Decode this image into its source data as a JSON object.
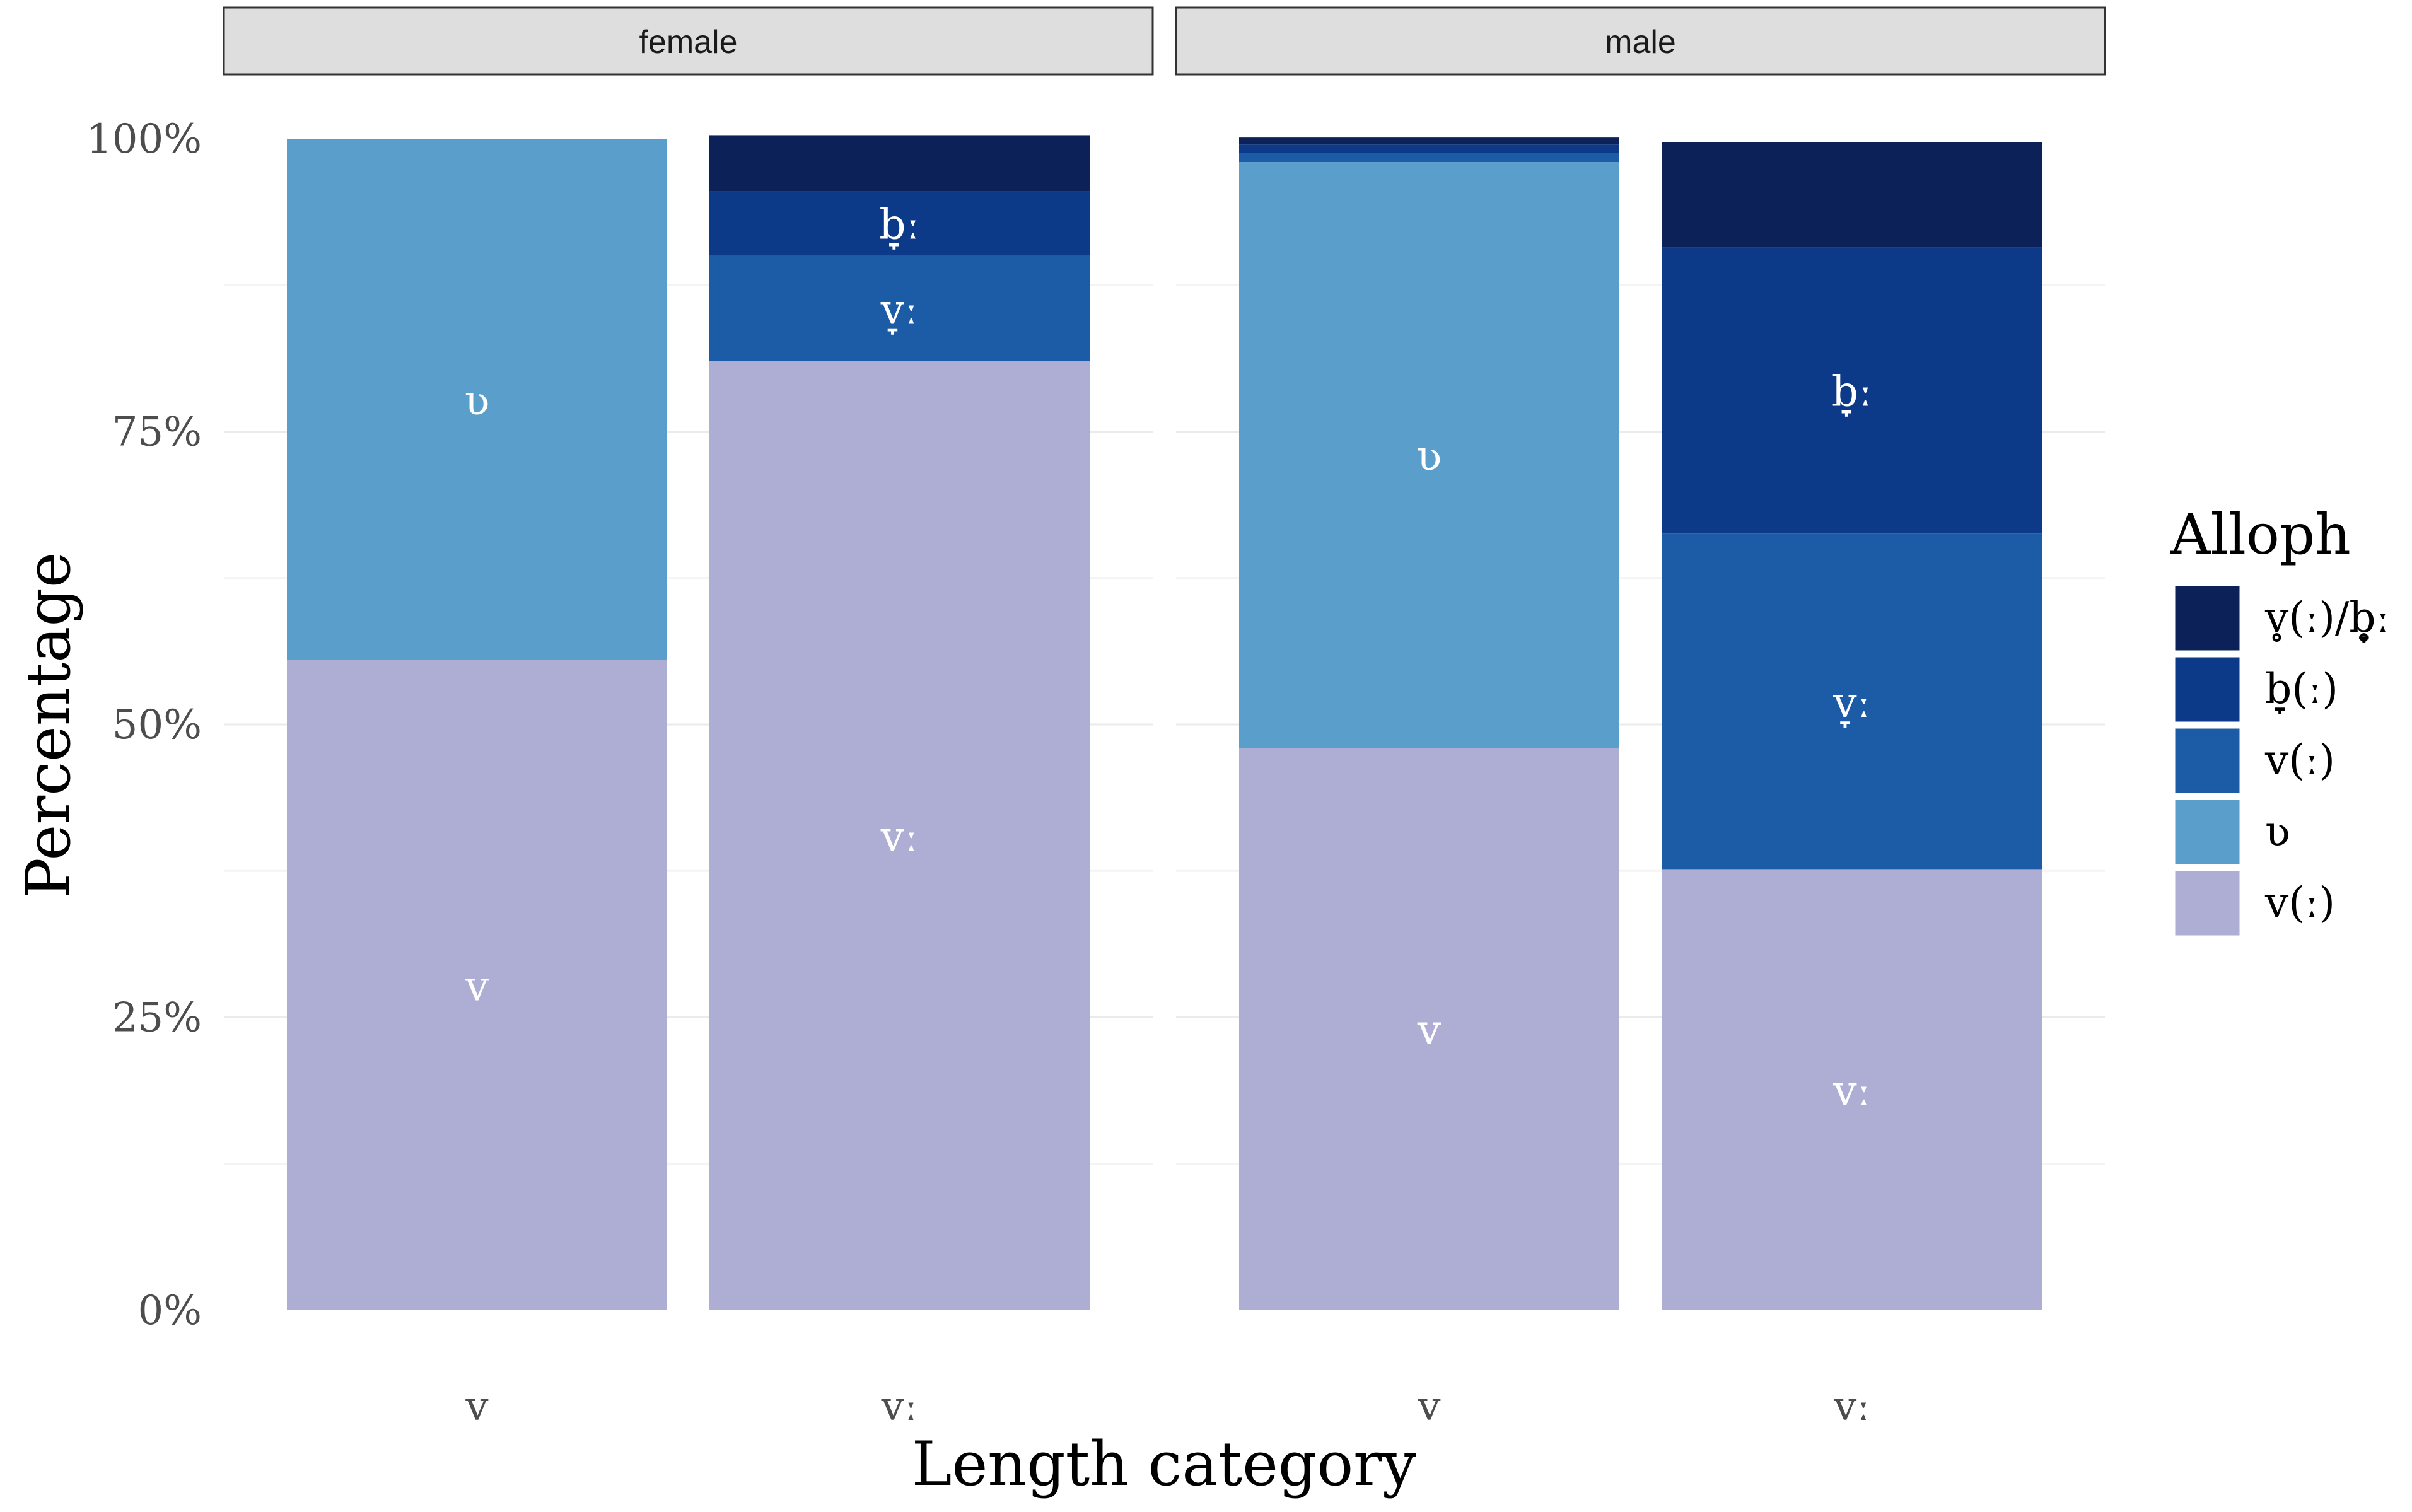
{
  "chart_data": {
    "type": "bar",
    "stacked": true,
    "faceted_by": "gender",
    "xlabel": "Length category",
    "ylabel": "Percentage",
    "ylim": [
      0,
      100
    ],
    "y_ticks": [
      "0%",
      "25%",
      "50%",
      "75%",
      "100%"
    ],
    "grid": true,
    "legend_title": "Alloph",
    "legend_position": "right",
    "legend": [
      {
        "label": "v̥(ː)/b̥̞ː",
        "color": "#0b2158"
      },
      {
        "label": "b̞(ː)",
        "color": "#0d3a88"
      },
      {
        "label": "v(ː)",
        "color": "#1c5ca6"
      },
      {
        "label": "ʋ",
        "color": "#5a9ecc"
      },
      {
        "label": "v(ː)",
        "color": "#aeaed5"
      }
    ],
    "panels": [
      {
        "name": "female",
        "bars": [
          {
            "category": "v",
            "segments": [
              {
                "color": "#aeaed5",
                "value": 55.5,
                "label": "v"
              },
              {
                "color": "#5a9ecc",
                "value": 44.5,
                "label": "ʋ"
              }
            ]
          },
          {
            "category": "vː",
            "segments": [
              {
                "color": "#aeaed5",
                "value": 81.0,
                "label": "vː"
              },
              {
                "color": "#1c5ca6",
                "value": 9.0,
                "label": "v̞ː"
              },
              {
                "color": "#0d3a88",
                "value": 5.5,
                "label": "b̞ː"
              },
              {
                "color": "#0b2158",
                "value": 4.8,
                "label": ""
              }
            ]
          }
        ]
      },
      {
        "name": "male",
        "bars": [
          {
            "category": "v",
            "segments": [
              {
                "color": "#aeaed5",
                "value": 48.0,
                "label": "v"
              },
              {
                "color": "#5a9ecc",
                "value": 50.0,
                "label": "ʋ"
              },
              {
                "color": "#1c5ca6",
                "value": 0.8,
                "label": ""
              },
              {
                "color": "#0d3a88",
                "value": 0.7,
                "label": ""
              },
              {
                "color": "#0b2158",
                "value": 0.6,
                "label": ""
              }
            ]
          },
          {
            "category": "vː",
            "segments": [
              {
                "color": "#aeaed5",
                "value": 37.6,
                "label": "vː"
              },
              {
                "color": "#1c5ca6",
                "value": 28.7,
                "label": "v̞ː"
              },
              {
                "color": "#0d3a88",
                "value": 24.4,
                "label": "b̞ː"
              },
              {
                "color": "#0b2158",
                "value": 9.0,
                "label": ""
              }
            ]
          }
        ]
      }
    ]
  }
}
